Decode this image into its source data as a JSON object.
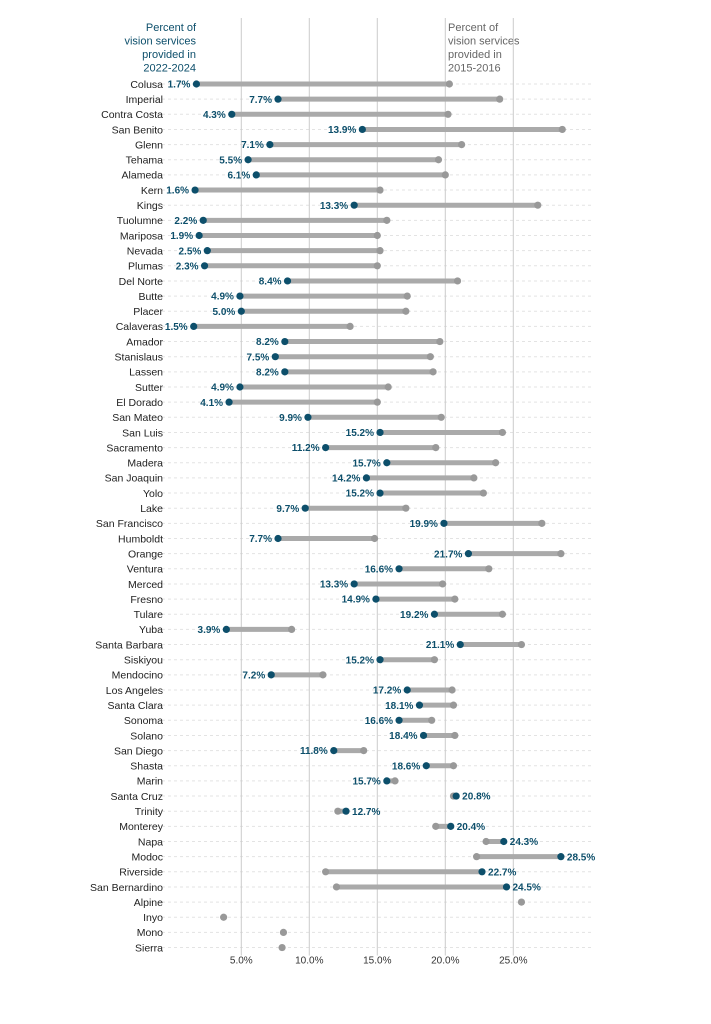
{
  "chart_data": {
    "type": "dumbbell",
    "legend_current": [
      "Percent of",
      "vision services",
      "provided in",
      "2022-2024"
    ],
    "legend_past": [
      "Percent of",
      "vision services",
      "provided in",
      "2015-2016"
    ],
    "x_ticks": [
      5,
      10,
      15,
      20,
      25
    ],
    "x_tick_labels": [
      "5.0%",
      "10.0%",
      "15.0%",
      "20.0%",
      "25.0%"
    ],
    "xlim": [
      0,
      30
    ],
    "colors": {
      "current": "#0d4f6b",
      "past": "#999999",
      "bar": "#aaaaaa",
      "grid": "#cccccc"
    },
    "rows": [
      {
        "county": "Colusa",
        "current": 1.7,
        "current_label": "1.7%",
        "past": 20.3
      },
      {
        "county": "Imperial",
        "current": 7.7,
        "current_label": "7.7%",
        "past": 24.0
      },
      {
        "county": "Contra Costa",
        "current": 4.3,
        "current_label": "4.3%",
        "past": 20.2
      },
      {
        "county": "San Benito",
        "current": 13.9,
        "current_label": "13.9%",
        "past": 28.6
      },
      {
        "county": "Glenn",
        "current": 7.1,
        "current_label": "7.1%",
        "past": 21.2
      },
      {
        "county": "Tehama",
        "current": 5.5,
        "current_label": "5.5%",
        "past": 19.5
      },
      {
        "county": "Alameda",
        "current": 6.1,
        "current_label": "6.1%",
        "past": 20.0
      },
      {
        "county": "Kern",
        "current": 1.6,
        "current_label": "1.6%",
        "past": 15.2
      },
      {
        "county": "Kings",
        "current": 13.3,
        "current_label": "13.3%",
        "past": 26.8
      },
      {
        "county": "Tuolumne",
        "current": 2.2,
        "current_label": "2.2%",
        "past": 15.7
      },
      {
        "county": "Mariposa",
        "current": 1.9,
        "current_label": "1.9%",
        "past": 15.0
      },
      {
        "county": "Nevada",
        "current": 2.5,
        "current_label": "2.5%",
        "past": 15.2
      },
      {
        "county": "Plumas",
        "current": 2.3,
        "current_label": "2.3%",
        "past": 15.0
      },
      {
        "county": "Del Norte",
        "current": 8.4,
        "current_label": "8.4%",
        "past": 20.9
      },
      {
        "county": "Butte",
        "current": 4.9,
        "current_label": "4.9%",
        "past": 17.2
      },
      {
        "county": "Placer",
        "current": 5.0,
        "current_label": "5.0%",
        "past": 17.1
      },
      {
        "county": "Calaveras",
        "current": 1.5,
        "current_label": "1.5%",
        "past": 13.0
      },
      {
        "county": "Amador",
        "current": 8.2,
        "current_label": "8.2%",
        "past": 19.6
      },
      {
        "county": "Stanislaus",
        "current": 7.5,
        "current_label": "7.5%",
        "past": 18.9
      },
      {
        "county": "Lassen",
        "current": 8.2,
        "current_label": "8.2%",
        "past": 19.1
      },
      {
        "county": "Sutter",
        "current": 4.9,
        "current_label": "4.9%",
        "past": 15.8
      },
      {
        "county": "El Dorado",
        "current": 4.1,
        "current_label": "4.1%",
        "past": 15.0
      },
      {
        "county": "San Mateo",
        "current": 9.9,
        "current_label": "9.9%",
        "past": 19.7
      },
      {
        "county": "San Luis",
        "current": 15.2,
        "current_label": "15.2%",
        "past": 24.2
      },
      {
        "county": "Sacramento",
        "current": 11.2,
        "current_label": "11.2%",
        "past": 19.3
      },
      {
        "county": "Madera",
        "current": 15.7,
        "current_label": "15.7%",
        "past": 23.7
      },
      {
        "county": "San Joaquin",
        "current": 14.2,
        "current_label": "14.2%",
        "past": 22.1
      },
      {
        "county": "Yolo",
        "current": 15.2,
        "current_label": "15.2%",
        "past": 22.8
      },
      {
        "county": "Lake",
        "current": 9.7,
        "current_label": "9.7%",
        "past": 17.1
      },
      {
        "county": "San Francisco",
        "current": 19.9,
        "current_label": "19.9%",
        "past": 27.1
      },
      {
        "county": "Humboldt",
        "current": 7.7,
        "current_label": "7.7%",
        "past": 14.8
      },
      {
        "county": "Orange",
        "current": 21.7,
        "current_label": "21.7%",
        "past": 28.5
      },
      {
        "county": "Ventura",
        "current": 16.6,
        "current_label": "16.6%",
        "past": 23.2
      },
      {
        "county": "Merced",
        "current": 13.3,
        "current_label": "13.3%",
        "past": 19.8
      },
      {
        "county": "Fresno",
        "current": 14.9,
        "current_label": "14.9%",
        "past": 20.7
      },
      {
        "county": "Tulare",
        "current": 19.2,
        "current_label": "19.2%",
        "past": 24.2
      },
      {
        "county": "Yuba",
        "current": 3.9,
        "current_label": "3.9%",
        "past": 8.7
      },
      {
        "county": "Santa Barbara",
        "current": 21.1,
        "current_label": "21.1%",
        "past": 25.6
      },
      {
        "county": "Siskiyou",
        "current": 15.2,
        "current_label": "15.2%",
        "past": 19.2
      },
      {
        "county": "Mendocino",
        "current": 7.2,
        "current_label": "7.2%",
        "past": 11.0
      },
      {
        "county": "Los Angeles",
        "current": 17.2,
        "current_label": "17.2%",
        "past": 20.5
      },
      {
        "county": "Santa Clara",
        "current": 18.1,
        "current_label": "18.1%",
        "past": 20.6
      },
      {
        "county": "Sonoma",
        "current": 16.6,
        "current_label": "16.6%",
        "past": 19.0
      },
      {
        "county": "Solano",
        "current": 18.4,
        "current_label": "18.4%",
        "past": 20.7
      },
      {
        "county": "San Diego",
        "current": 11.8,
        "current_label": "11.8%",
        "past": 14.0
      },
      {
        "county": "Shasta",
        "current": 18.6,
        "current_label": "18.6%",
        "past": 20.6
      },
      {
        "county": "Marin",
        "current": 15.7,
        "current_label": "15.7%",
        "past": 16.3
      },
      {
        "county": "Santa Cruz",
        "current": 20.8,
        "current_label": "20.8%",
        "past": 20.6
      },
      {
        "county": "Trinity",
        "current": 12.7,
        "current_label": "12.7%",
        "past": 12.1
      },
      {
        "county": "Monterey",
        "current": 20.4,
        "current_label": "20.4%",
        "past": 19.3
      },
      {
        "county": "Napa",
        "current": 24.3,
        "current_label": "24.3%",
        "past": 23.0
      },
      {
        "county": "Modoc",
        "current": 28.5,
        "current_label": "28.5%",
        "past": 22.3
      },
      {
        "county": "Riverside",
        "current": 22.7,
        "current_label": "22.7%",
        "past": 11.2
      },
      {
        "county": "San Bernardino",
        "current": 24.5,
        "current_label": "24.5%",
        "past": 12.0
      },
      {
        "county": "Alpine",
        "current": null,
        "current_label": "",
        "past": 25.6
      },
      {
        "county": "Inyo",
        "current": null,
        "current_label": "",
        "past": 3.7
      },
      {
        "county": "Mono",
        "current": null,
        "current_label": "",
        "past": 8.1
      },
      {
        "county": "Sierra",
        "current": null,
        "current_label": "",
        "past": 8.0
      }
    ]
  }
}
